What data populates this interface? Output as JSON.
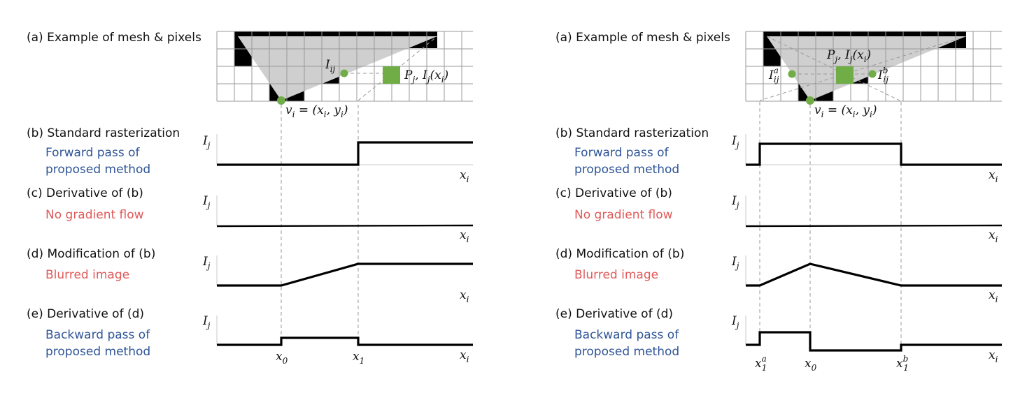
{
  "panels": [
    {
      "labels": {
        "a_title": "(a) Example of mesh & pixels",
        "b_title": "(b) Standard rasterization",
        "b_note_1": "Forward pass of",
        "b_note_2": "proposed method",
        "c_title": "(c) Derivative of (b)",
        "c_note": "No gradient flow",
        "d_title": "(d) Modification of (b)",
        "d_note": "Blurred image",
        "e_title": "(e) Derivative of (d)",
        "e_note_1": "Backward pass of",
        "e_note_2": "proposed method"
      },
      "mesh": {
        "pixel_label": "I",
        "pixel_sub": "ij",
        "point_label": "P",
        "point_sub": "j",
        "intensity_label": ", I",
        "intensity_sub": "j",
        "intensity_arg": "(x",
        "intensity_arg_sub": "i",
        "intensity_close": ")",
        "vertex_label": "v",
        "vertex_sub": "i",
        "vertex_eq": " = (x",
        "vertex_x_sub": "i",
        "vertex_mid": ", y",
        "vertex_y_sub": "i",
        "vertex_close": ")"
      },
      "axes": {
        "y_label": "I",
        "y_sub": "j",
        "x_label": "x",
        "x_sub": "i"
      },
      "ticks": [
        {
          "label": "x",
          "sub": "0",
          "sup": ""
        },
        {
          "label": "x",
          "sub": "1",
          "sup": ""
        }
      ]
    },
    {
      "labels": {
        "a_title": "(a) Example of mesh & pixels",
        "b_title": "(b) Standard rasterization",
        "b_note_1": "Forward pass of",
        "b_note_2": "proposed method",
        "c_title": "(c) Derivative of (b)",
        "c_note": "No gradient flow",
        "d_title": "(d) Modification of (b)",
        "d_note": "Blurred image",
        "e_title": "(e) Derivative of (d)",
        "e_note_1": "Backward pass of",
        "e_note_2": "proposed method"
      },
      "mesh": {
        "point_label": "P",
        "point_sub": "j",
        "intensity_label": ", I",
        "intensity_sub": "j",
        "intensity_arg": "(x",
        "intensity_arg_sub": "i",
        "intensity_close": ")",
        "left_label": "I",
        "left_sub": "ij",
        "left_sup": "a",
        "right_label": "I",
        "right_sub": "ij",
        "right_sup": "b",
        "vertex_label": "v",
        "vertex_sub": "i",
        "vertex_eq": " = (x",
        "vertex_x_sub": "i",
        "vertex_mid": ", y",
        "vertex_y_sub": "i",
        "vertex_close": ")"
      },
      "axes": {
        "y_label": "I",
        "y_sub": "j",
        "x_label": "x",
        "x_sub": "i"
      },
      "ticks": [
        {
          "label": "x",
          "sub": "1",
          "sup": "a"
        },
        {
          "label": "x",
          "sub": "0",
          "sup": ""
        },
        {
          "label": "x",
          "sub": "1",
          "sup": "b"
        }
      ]
    }
  ],
  "colors": {
    "accent_blue": "#2f5597",
    "accent_red": "#e05a5a",
    "mesh_fill": "#d0cfcf",
    "green": "#70ad47"
  }
}
